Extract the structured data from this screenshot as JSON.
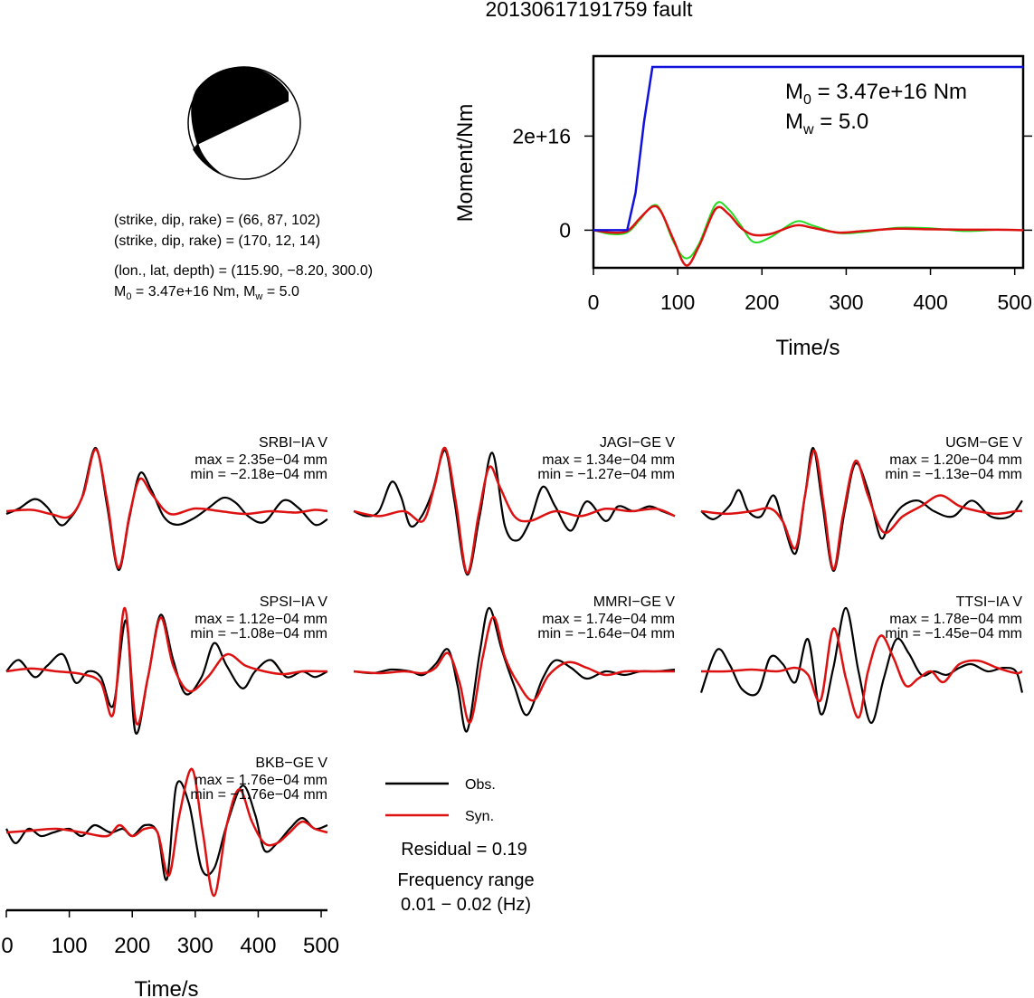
{
  "title": "20130617191759 fault",
  "focal": {
    "line1": "(strike, dip, rake) = (66, 87, 102)",
    "line2": "(strike, dip, rake) = (170, 12, 14)",
    "line3": "(lon., lat, depth) = (115.90, −8.20, 300.0)",
    "line4_m": "M",
    "line4_m_sub": "0",
    "line4_mid": " = 3.47e+16 Nm, M",
    "line4_w_sub": "w",
    "line4_end": " = 5.0"
  },
  "legend": {
    "obs": "Obs.",
    "syn": "Syn."
  },
  "residual": "Residual = 0.19",
  "freq_label": "Frequency range",
  "freq_range": "0.01 − 0.02 (Hz)",
  "colors": {
    "obs": "#000000",
    "syn": "#dd1111",
    "moment": "#1111dd",
    "stf_green": "#22dd22"
  },
  "chart_data": [
    {
      "type": "line",
      "ylabel": "Moment/Nm",
      "xlabel": "Time/s",
      "xlim": [
        0,
        510
      ],
      "ylim": [
        -8000000000000000.0,
        3.7e+16
      ],
      "x_ticks": [
        "0",
        "100",
        "200",
        "300",
        "400",
        "500"
      ],
      "y_ticks": [
        "0",
        "2e+16"
      ],
      "annotation": {
        "m0_prefix": "M",
        "m0_sub": "0",
        "m0_text": " = 3.47e+16 Nm",
        "mw_prefix": "M",
        "mw_sub": "w",
        "mw_text": " = 5.0"
      },
      "series": [
        {
          "role": "moment",
          "x": [
            0,
            40,
            50,
            60,
            70,
            510
          ],
          "y": [
            0,
            0,
            8000000000000000.0,
            2.3e+16,
            3.47e+16,
            3.47e+16
          ]
        },
        {
          "role": "moment-rate",
          "x": [
            0,
            20,
            40,
            55,
            70,
            80,
            95,
            110,
            125,
            145,
            160,
            175,
            190,
            210,
            240,
            260,
            290,
            320,
            360,
            400,
            440,
            480,
            510
          ],
          "y": [
            0,
            -500000000000000.0,
            -200000000000000.0,
            2500000000000000.0,
            5000000000000000.0,
            4000000000000000.0,
            -2000000000000000.0,
            -7500000000000000.0,
            -3500000000000000.0,
            4500000000000000.0,
            3500000000000000.0,
            500000000000000.0,
            -1000000000000000.0,
            -800000000000000.0,
            1000000000000000.0,
            500000000000000.0,
            -500000000000000.0,
            -200000000000000.0,
            300000000000000.0,
            200000000000000.0,
            100000000000000.0,
            100000000000000.0,
            0
          ]
        },
        {
          "role": "moment-rate-smooth",
          "x": [
            0,
            20,
            40,
            55,
            70,
            80,
            95,
            110,
            125,
            145,
            160,
            175,
            190,
            210,
            240,
            260,
            290,
            320,
            360,
            400,
            440,
            480,
            510
          ],
          "y": [
            0,
            -800000000000000.0,
            -500000000000000.0,
            2200000000000000.0,
            5200000000000000.0,
            4200000000000000.0,
            -2500000000000000.0,
            -6000000000000000.0,
            -3000000000000000.0,
            5500000000000000.0,
            4500000000000000.0,
            1000000000000000.0,
            -2500000000000000.0,
            -1500000000000000.0,
            1800000000000000.0,
            1000000000000000.0,
            -600000000000000.0,
            -400000000000000.0,
            500000000000000.0,
            400000000000000.0,
            -200000000000000.0,
            100000000000000.0,
            0
          ]
        }
      ]
    },
    {
      "type": "line",
      "xlabel": "Time/s",
      "xlim": [
        0,
        510
      ],
      "x_ticks": [
        "0",
        "100",
        "200",
        "300",
        "400",
        "500"
      ],
      "panels": [
        {
          "station": "SRBI−IA V",
          "max": "max = 2.35e−04 mm",
          "min": "min = −2.18e−04 mm",
          "obs": {
            "x": [
              0,
              20,
              45,
              65,
              85,
              100,
              120,
              142,
              160,
              178,
              195,
              212,
              230,
              250,
              270,
              295,
              320,
              345,
              365,
              385,
              410,
              440,
              465,
              490,
              510
            ],
            "y": [
              -0.1,
              0.1,
              0.45,
              0.15,
              -0.5,
              -0.3,
              0.5,
              2.35,
              0.2,
              -2.18,
              -0.3,
              1.4,
              0.8,
              -0.2,
              -0.5,
              -0.3,
              0.1,
              0.5,
              0.3,
              -0.2,
              -0.4,
              0.4,
              0.1,
              -0.5,
              -0.3
            ]
          },
          "syn": {
            "x": [
              0,
              40,
              70,
              100,
              122,
              142,
              160,
              178,
              196,
              212,
              232,
              260,
              300,
              340,
              380,
              420,
              460,
              490,
              510
            ],
            "y": [
              0.0,
              0.05,
              -0.1,
              -0.2,
              0.6,
              2.3,
              0.4,
              -2.1,
              -0.1,
              1.2,
              0.6,
              -0.1,
              0.1,
              0.0,
              -0.1,
              0.0,
              -0.05,
              0.05,
              0.0
            ]
          }
        },
        {
          "station": "JAGI−GE V",
          "max": "max = 1.34e−04 mm",
          "min": "min = −1.27e−04 mm",
          "obs": {
            "x": [
              0,
              20,
              40,
              60,
              75,
              90,
              108,
              125,
              145,
              160,
              180,
              200,
              220,
              240,
              260,
              280,
              300,
              320,
              345,
              370,
              400,
              420,
              445,
              470,
              490,
              510
            ],
            "y": [
              0.0,
              -0.1,
              0.0,
              0.6,
              0.3,
              -0.3,
              -0.1,
              0.4,
              1.25,
              0.2,
              -1.3,
              -0.1,
              1.2,
              -0.3,
              -0.6,
              -0.2,
              0.5,
              0.1,
              -0.4,
              0.2,
              -0.2,
              0.1,
              0.0,
              0.1,
              0.0,
              -0.1
            ]
          },
          "syn": {
            "x": [
              0,
              40,
              80,
              110,
              128,
              145,
              162,
              180,
              198,
              215,
              232,
              255,
              280,
              320,
              360,
              400,
              440,
              480,
              510
            ],
            "y": [
              0.0,
              -0.1,
              0.0,
              -0.2,
              0.5,
              1.3,
              0.2,
              -1.27,
              -0.1,
              0.9,
              0.5,
              -0.1,
              -0.2,
              0.0,
              -0.1,
              0.05,
              0.0,
              0.05,
              -0.1
            ]
          }
        },
        {
          "station": "UGM−GE V",
          "max": "max = 1.20e−04 mm",
          "min": "min = −1.13e−04 mm",
          "obs": {
            "x": [
              0,
              20,
              45,
              60,
              75,
              95,
              115,
              130,
              150,
              165,
              178,
              192,
              210,
              228,
              245,
              265,
              285,
              300,
              320,
              345,
              370,
              400,
              430,
              460,
              490,
              510
            ],
            "y": [
              0.0,
              -0.15,
              0.1,
              0.4,
              0.0,
              -0.1,
              0.3,
              -0.2,
              -0.8,
              0.3,
              1.2,
              0.2,
              -1.13,
              0.0,
              0.9,
              0.4,
              -0.5,
              -0.2,
              0.1,
              0.2,
              0.0,
              -0.1,
              0.2,
              -0.1,
              -0.1,
              0.2
            ]
          },
          "syn": {
            "x": [
              0,
              40,
              80,
              110,
              130,
              150,
              165,
              180,
              195,
              210,
              225,
              245,
              265,
              290,
              320,
              350,
              380,
              410,
              440,
              470,
              500,
              510
            ],
            "y": [
              0.0,
              -0.05,
              0.0,
              0.05,
              -0.2,
              -0.7,
              0.3,
              1.15,
              0.1,
              -1.1,
              -0.1,
              0.95,
              0.3,
              -0.4,
              -0.1,
              0.1,
              0.3,
              0.1,
              0.0,
              -0.05,
              0.0,
              0.0
            ]
          }
        },
        {
          "station": "SPSI−IA V",
          "max": "max = 1.12e−04 mm",
          "min": "min = −1.08e−04 mm",
          "obs": {
            "x": [
              0,
              20,
              45,
              65,
              90,
              110,
              130,
              150,
              170,
              190,
              205,
              225,
              245,
              265,
              285,
              310,
              330,
              350,
              375,
              395,
              420,
              445,
              470,
              490,
              510
            ],
            "y": [
              0.0,
              0.2,
              -0.1,
              0.1,
              0.3,
              -0.2,
              0.0,
              -0.1,
              -0.6,
              0.9,
              -1.08,
              -0.1,
              1.0,
              0.2,
              -0.4,
              -0.1,
              0.5,
              0.1,
              -0.3,
              0.0,
              0.2,
              -0.1,
              0.0,
              -0.1,
              0.0
            ]
          },
          "syn": {
            "x": [
              0,
              40,
              80,
              120,
              150,
              170,
              188,
              206,
              225,
              245,
              265,
              290,
              320,
              350,
              380,
              410,
              440,
              470,
              500,
              510
            ],
            "y": [
              0.0,
              0.05,
              0.0,
              -0.05,
              -0.2,
              -0.75,
              1.12,
              -0.9,
              -0.1,
              0.95,
              0.1,
              -0.35,
              -0.1,
              0.3,
              0.1,
              0.0,
              -0.05,
              0.0,
              0.0,
              0.0
            ]
          }
        },
        {
          "station": "MMRI−GE V",
          "max": "max = 1.74e−04 mm",
          "min": "min = −1.64e−04 mm",
          "obs": {
            "x": [
              0,
              30,
              60,
              90,
              110,
              130,
              150,
              165,
              180,
              200,
              215,
              235,
              255,
              275,
              300,
              320,
              345,
              370,
              400,
              430,
              455,
              480,
              510
            ],
            "y": [
              0.0,
              -0.05,
              0.05,
              0.0,
              -0.1,
              0.2,
              0.6,
              -0.4,
              -1.64,
              0.5,
              1.74,
              0.6,
              -0.4,
              -1.2,
              -0.2,
              0.3,
              0.1,
              -0.2,
              0.0,
              -0.1,
              0.0,
              0.0,
              0.05
            ]
          },
          "syn": {
            "x": [
              0,
              40,
              80,
              110,
              130,
              150,
              168,
              185,
              205,
              222,
              240,
              260,
              285,
              310,
              340,
              370,
              400,
              430,
              460,
              490,
              510
            ],
            "y": [
              0.0,
              -0.05,
              0.0,
              -0.05,
              0.1,
              0.5,
              -0.3,
              -1.4,
              0.4,
              1.5,
              0.4,
              -0.3,
              -0.8,
              -0.1,
              0.25,
              0.1,
              -0.1,
              0.0,
              0.0,
              0.0,
              0.0
            ]
          }
        },
        {
          "station": "TTSI−IA V",
          "max": "max = 1.78e−04 mm",
          "min": "min = −1.45e−04 mm",
          "obs": {
            "x": [
              0,
              25,
              45,
              65,
              90,
              110,
              130,
              150,
              170,
              190,
              210,
              230,
              250,
              270,
              290,
              310,
              330,
              350,
              370,
              390,
              410,
              430,
              455,
              480,
              500,
              510
            ],
            "y": [
              -0.6,
              0.6,
              0.2,
              -0.5,
              -0.6,
              0.4,
              0.2,
              -0.3,
              0.9,
              -1.2,
              0.1,
              1.78,
              0.0,
              -1.45,
              -0.2,
              0.9,
              0.5,
              -0.1,
              0.0,
              -0.1,
              0.1,
              0.2,
              0.0,
              0.1,
              0.0,
              -0.6
            ]
          },
          "syn": {
            "x": [
              0,
              40,
              80,
              120,
              150,
              170,
              190,
              210,
              230,
              250,
              265,
              285,
              305,
              325,
              345,
              365,
              385,
              410,
              440,
              470,
              500,
              510
            ],
            "y": [
              0.0,
              0.0,
              0.05,
              0.0,
              0.1,
              -0.1,
              -0.8,
              1.2,
              -0.2,
              -1.3,
              0.0,
              1.0,
              0.4,
              -0.4,
              -0.2,
              0.0,
              -0.3,
              0.2,
              0.3,
              0.1,
              -0.05,
              0.0
            ]
          }
        },
        {
          "station": "BKB−GE V",
          "max": "max = 1.76e−04 mm",
          "min": "min = −1.76e−04 mm",
          "obs": {
            "x": [
              0,
              15,
              35,
              55,
              75,
              100,
              120,
              140,
              165,
              185,
              200,
              220,
              240,
              255,
              270,
              290,
              310,
              330,
              350,
              375,
              395,
              410,
              430,
              450,
              470,
              490,
              510
            ],
            "y": [
              0.1,
              -0.3,
              0.1,
              -0.1,
              0.0,
              0.1,
              -0.1,
              0.2,
              0.0,
              0.1,
              -0.1,
              0.2,
              0.0,
              -1.3,
              1.3,
              0.8,
              -1.0,
              -1.0,
              0.2,
              1.3,
              0.5,
              -0.5,
              -0.3,
              0.1,
              0.4,
              0.1,
              0.2
            ]
          },
          "syn": {
            "x": [
              0,
              40,
              80,
              120,
              160,
              180,
              200,
              220,
              240,
              258,
              275,
              295,
              312,
              330,
              350,
              370,
              390,
              410,
              430,
              450,
              470,
              490,
              510
            ],
            "y": [
              0.0,
              0.05,
              0.1,
              0.0,
              -0.1,
              0.2,
              -0.1,
              0.1,
              0.0,
              -1.2,
              0.5,
              1.76,
              0.0,
              -1.76,
              0.2,
              1.2,
              0.3,
              -0.3,
              -0.3,
              0.0,
              0.3,
              0.1,
              0.0
            ]
          }
        }
      ]
    }
  ]
}
